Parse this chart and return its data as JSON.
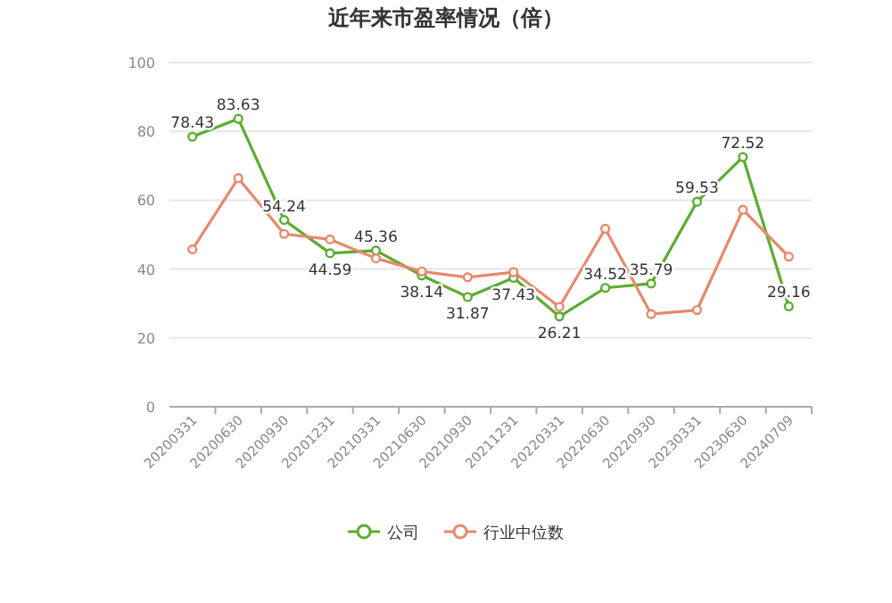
{
  "chart_data": {
    "type": "line",
    "title": "近年来市盈率情况（倍）",
    "categories": [
      "20200331",
      "20200630",
      "20200930",
      "20201231",
      "20210331",
      "20210630",
      "20210930",
      "20211231",
      "20220331",
      "20220630",
      "20220930",
      "20230331",
      "20230630",
      "20240709"
    ],
    "series": [
      {
        "name": "公司",
        "color": "#5aad2e",
        "values": [
          78.43,
          83.63,
          54.24,
          44.59,
          45.36,
          38.14,
          31.87,
          37.43,
          26.21,
          34.52,
          35.79,
          59.53,
          72.52,
          29.16
        ],
        "value_labels": [
          "78.43",
          "83.63",
          "54.24",
          "44.59",
          "45.36",
          "38.14",
          "31.87",
          "37.43",
          "26.21",
          "34.52",
          "35.79",
          "59.53",
          "72.52",
          "29.16"
        ]
      },
      {
        "name": "行业中位数",
        "color": "#e8886c",
        "values": [
          45.7,
          66.4,
          50.2,
          48.6,
          43.1,
          39.3,
          37.6,
          39.1,
          29,
          51.7,
          26.9,
          28.1,
          57.2,
          43.6
        ]
      }
    ],
    "ylim": [
      0,
      100
    ],
    "yticks": [
      0,
      20,
      40,
      60,
      80,
      100
    ],
    "grid": "y",
    "legend": "bottom",
    "marker": "circle",
    "line_style": "solid"
  }
}
